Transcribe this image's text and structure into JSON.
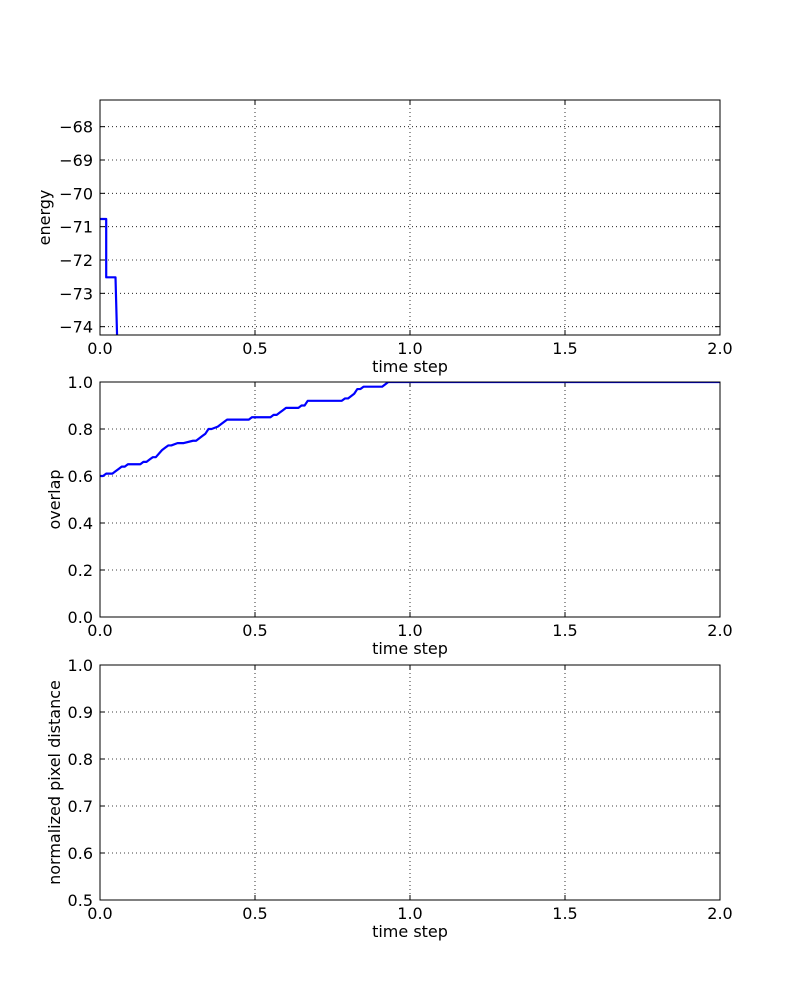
{
  "chart_data": [
    {
      "type": "line",
      "xlabel": "time step",
      "ylabel": "energy",
      "xlim": [
        0.0,
        2.0
      ],
      "ylim": [
        -74.25,
        -67.2
      ],
      "x_ticks": [
        "0.0",
        "0.5",
        "1.0",
        "1.5",
        "2.0"
      ],
      "y_ticks": [
        "−74",
        "−73",
        "−72",
        "−71",
        "−70",
        "−69",
        "−68"
      ],
      "x_tick_values": [
        0.0,
        0.5,
        1.0,
        1.5,
        2.0
      ],
      "y_tick_values": [
        -74,
        -73,
        -72,
        -71,
        -70,
        -69,
        -68
      ],
      "grid": true,
      "series": [
        {
          "color": "#0000ff",
          "x": [
            0.0,
            0.02,
            0.02,
            0.05,
            0.055
          ],
          "y": [
            -70.77,
            -70.77,
            -72.52,
            -72.52,
            -74.25
          ]
        }
      ]
    },
    {
      "type": "line",
      "xlabel": "time step",
      "ylabel": "overlap",
      "xlim": [
        0.0,
        2.0
      ],
      "ylim": [
        0.0,
        1.0
      ],
      "x_ticks": [
        "0.0",
        "0.5",
        "1.0",
        "1.5",
        "2.0"
      ],
      "y_ticks": [
        "0.0",
        "0.2",
        "0.4",
        "0.6",
        "0.8",
        "1.0"
      ],
      "x_tick_values": [
        0.0,
        0.5,
        1.0,
        1.5,
        2.0
      ],
      "y_tick_values": [
        0.0,
        0.2,
        0.4,
        0.6,
        0.8,
        1.0
      ],
      "grid": true,
      "series": [
        {
          "color": "#0000ff",
          "x": [
            0.0,
            0.01,
            0.02,
            0.04,
            0.05,
            0.06,
            0.07,
            0.08,
            0.09,
            0.1,
            0.13,
            0.14,
            0.15,
            0.16,
            0.17,
            0.18,
            0.2,
            0.21,
            0.22,
            0.23,
            0.25,
            0.26,
            0.27,
            0.3,
            0.31,
            0.32,
            0.33,
            0.34,
            0.35,
            0.36,
            0.38,
            0.39,
            0.41,
            0.42,
            0.48,
            0.49,
            0.55,
            0.56,
            0.57,
            0.58,
            0.59,
            0.6,
            0.64,
            0.65,
            0.66,
            0.67,
            0.78,
            0.79,
            0.8,
            0.81,
            0.82,
            0.83,
            0.84,
            0.85,
            0.91,
            0.92,
            0.93,
            2.0
          ],
          "y": [
            0.6,
            0.6,
            0.61,
            0.61,
            0.62,
            0.63,
            0.64,
            0.64,
            0.65,
            0.65,
            0.65,
            0.66,
            0.66,
            0.67,
            0.68,
            0.68,
            0.71,
            0.72,
            0.73,
            0.73,
            0.74,
            0.74,
            0.74,
            0.75,
            0.75,
            0.76,
            0.77,
            0.78,
            0.8,
            0.8,
            0.81,
            0.82,
            0.84,
            0.84,
            0.84,
            0.85,
            0.85,
            0.86,
            0.86,
            0.87,
            0.88,
            0.89,
            0.89,
            0.9,
            0.9,
            0.92,
            0.92,
            0.93,
            0.93,
            0.94,
            0.95,
            0.97,
            0.97,
            0.98,
            0.98,
            0.99,
            1.0,
            1.0
          ]
        }
      ]
    },
    {
      "type": "line",
      "xlabel": "time step",
      "ylabel": "normalized pixel distance",
      "xlim": [
        0.0,
        2.0
      ],
      "ylim": [
        0.5,
        1.0
      ],
      "x_ticks": [
        "0.0",
        "0.5",
        "1.0",
        "1.5",
        "2.0"
      ],
      "y_ticks": [
        "0.5",
        "0.6",
        "0.7",
        "0.8",
        "0.9",
        "1.0"
      ],
      "x_tick_values": [
        0.0,
        0.5,
        1.0,
        1.5,
        2.0
      ],
      "y_tick_values": [
        0.5,
        0.6,
        0.7,
        0.8,
        0.9,
        1.0
      ],
      "grid": true,
      "series": []
    }
  ]
}
